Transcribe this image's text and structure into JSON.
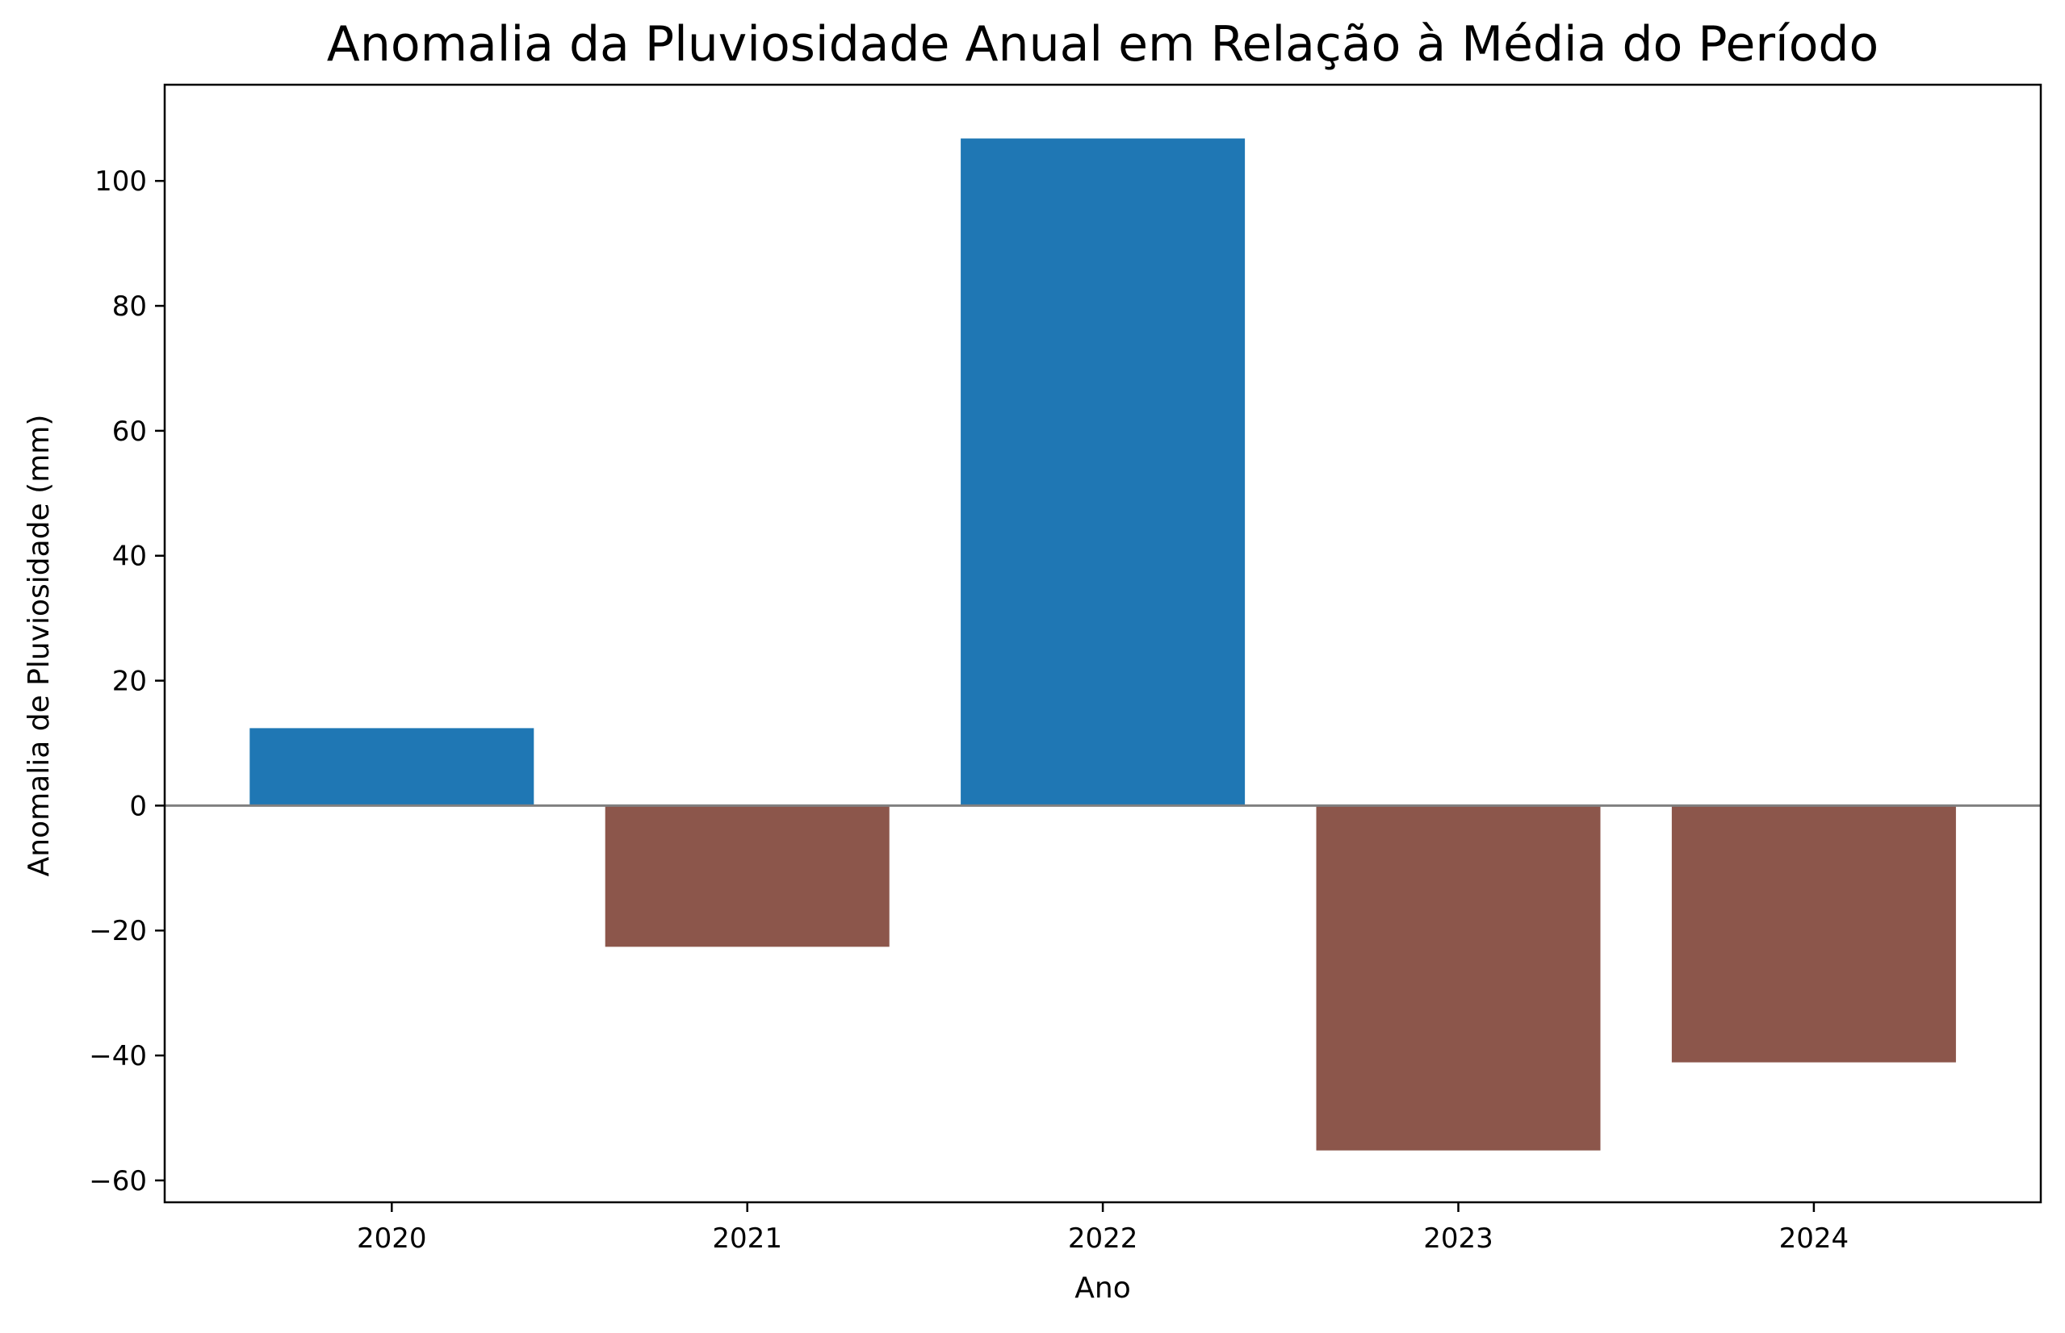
{
  "chart_data": {
    "type": "bar",
    "title": "Anomalia da Pluviosidade Anual em Relação à Média do Período",
    "xlabel": "Ano",
    "ylabel": "Anomalia de Pluviosidade (mm)",
    "categories": [
      "2020",
      "2021",
      "2022",
      "2023",
      "2024"
    ],
    "values": [
      12.4,
      -22.6,
      106.8,
      -55.2,
      -41.1
    ],
    "ylim": [
      -63.5,
      115.4
    ],
    "yticks": [
      -60,
      -40,
      -20,
      0,
      20,
      40,
      60,
      80,
      100
    ],
    "grid": false,
    "zero_line": true,
    "colors": {
      "positive": "#1f77b4",
      "negative": "#8c564b",
      "zero_line": "#808080",
      "axes": "#000000"
    }
  }
}
